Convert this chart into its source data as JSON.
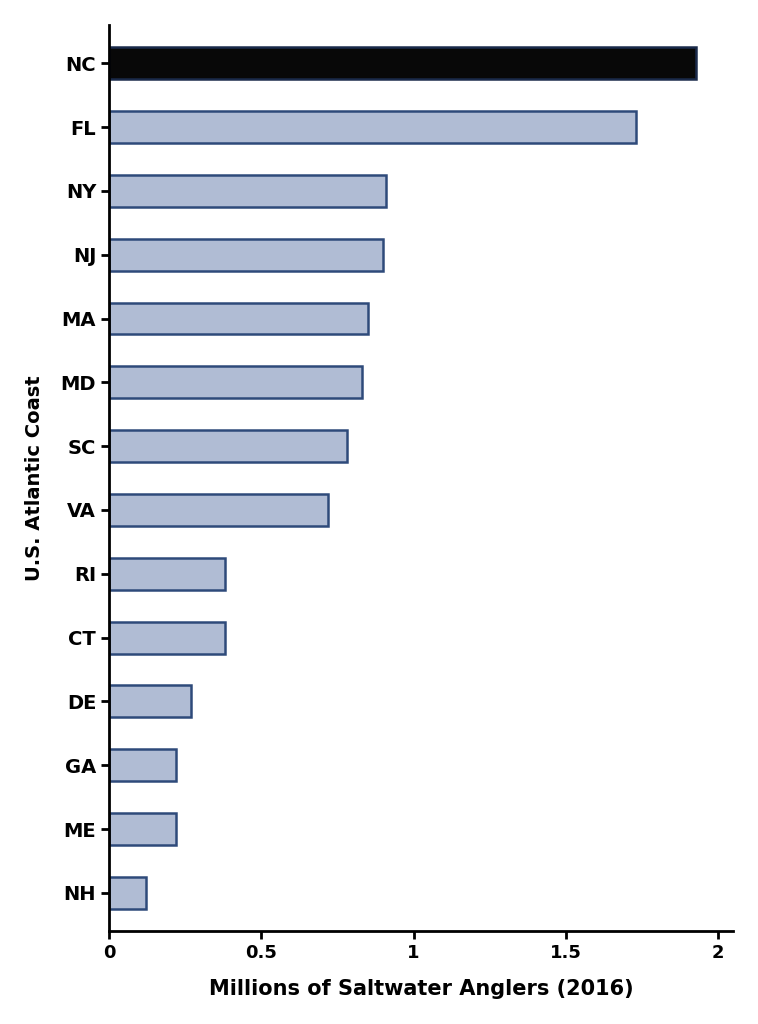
{
  "states": [
    "NH",
    "ME",
    "GA",
    "DE",
    "CT",
    "RI",
    "VA",
    "SC",
    "MD",
    "MA",
    "NJ",
    "NY",
    "FL",
    "NC"
  ],
  "values": [
    0.12,
    0.22,
    0.22,
    0.27,
    0.38,
    0.38,
    0.72,
    0.78,
    0.83,
    0.85,
    0.9,
    0.91,
    1.73,
    1.93
  ],
  "bar_colors": [
    "#b0bcd4",
    "#b0bcd4",
    "#b0bcd4",
    "#b0bcd4",
    "#b0bcd4",
    "#b0bcd4",
    "#b0bcd4",
    "#b0bcd4",
    "#b0bcd4",
    "#b0bcd4",
    "#b0bcd4",
    "#b0bcd4",
    "#b0bcd4",
    "#080808"
  ],
  "edge_colors": [
    "#2e4a7a",
    "#2e4a7a",
    "#2e4a7a",
    "#2e4a7a",
    "#2e4a7a",
    "#2e4a7a",
    "#2e4a7a",
    "#2e4a7a",
    "#2e4a7a",
    "#2e4a7a",
    "#2e4a7a",
    "#2e4a7a",
    "#2e4a7a",
    "#1a2a4a"
  ],
  "xlabel": "Millions of Saltwater Anglers (2016)",
  "ylabel": "U.S. Atlantic Coast",
  "xlim": [
    0,
    2.05
  ],
  "xticks": [
    0,
    0.5,
    1.0,
    1.5,
    2.0
  ],
  "xtick_labels": [
    "0",
    "0.5",
    "1",
    "1.5",
    "2"
  ],
  "background_color": "#ffffff",
  "xlabel_fontsize": 15,
  "ylabel_fontsize": 14,
  "tick_fontsize": 13,
  "label_fontsize": 14,
  "bar_height": 0.5
}
